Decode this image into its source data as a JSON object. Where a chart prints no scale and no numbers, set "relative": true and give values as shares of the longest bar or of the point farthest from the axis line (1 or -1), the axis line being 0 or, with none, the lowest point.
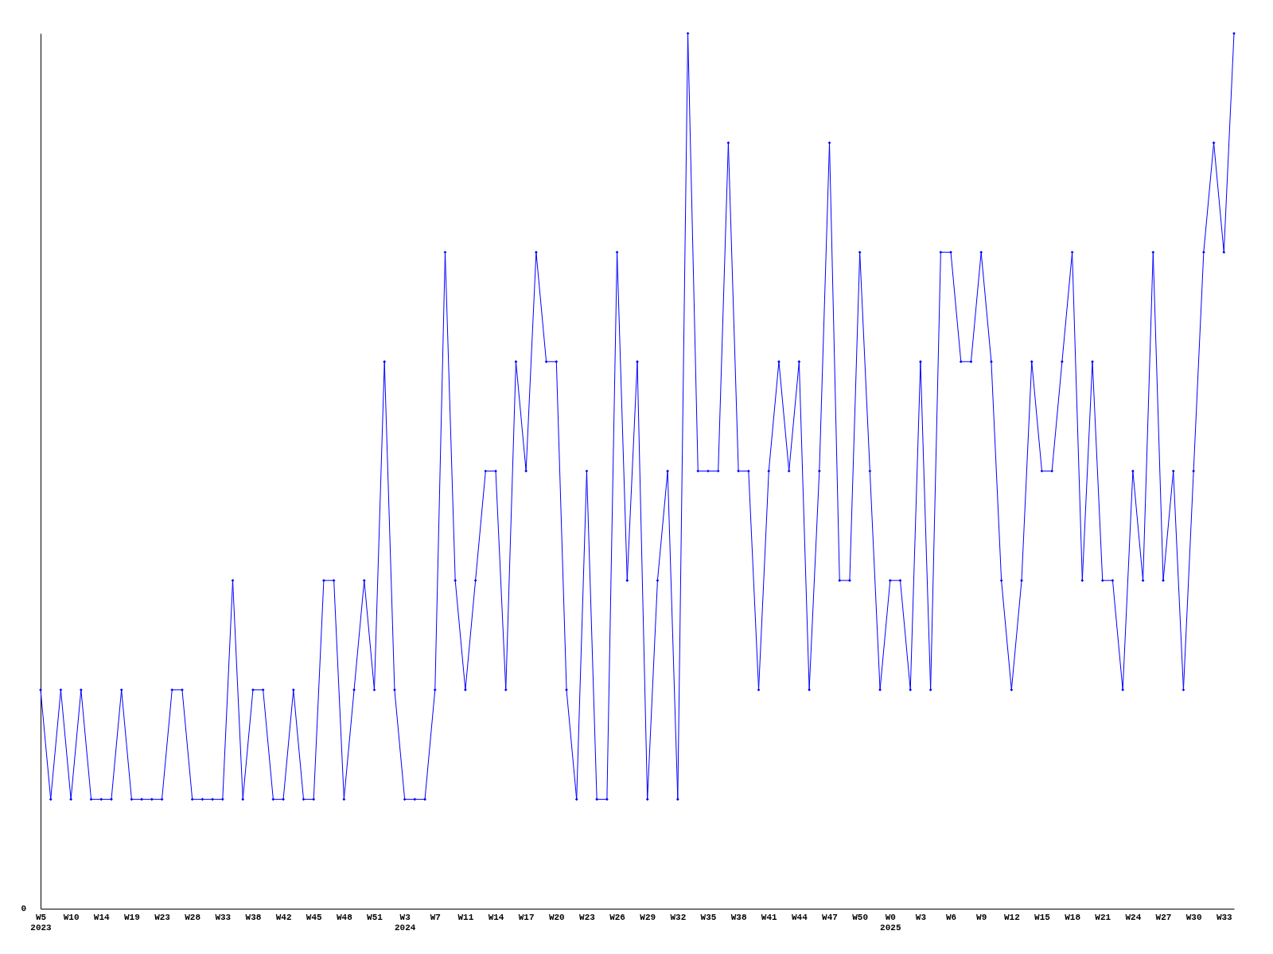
{
  "chart_data": {
    "type": "line",
    "relative": true,
    "color": "#0000ff",
    "marker": "diamond",
    "line_style": "solid",
    "grid": false,
    "annotations": [
      "0"
    ],
    "categories": [
      "W5 2023",
      null,
      null,
      "W10",
      null,
      null,
      "W14",
      null,
      null,
      "W19",
      null,
      null,
      "W23",
      null,
      null,
      "W28",
      null,
      null,
      "W33",
      null,
      null,
      "W38",
      null,
      null,
      "W42",
      null,
      null,
      "W45",
      null,
      null,
      "W48",
      null,
      null,
      "W51",
      null,
      null,
      "W3 2024",
      null,
      null,
      "W7",
      null,
      null,
      "W11",
      null,
      null,
      "W14",
      null,
      null,
      "W17",
      null,
      null,
      "W20",
      null,
      null,
      "W23",
      null,
      null,
      "W26",
      null,
      null,
      "W29",
      null,
      null,
      "W32",
      null,
      null,
      "W35",
      null,
      null,
      "W38",
      null,
      null,
      "W41",
      null,
      null,
      "W44",
      null,
      null,
      "W47",
      null,
      null,
      "W50",
      null,
      null,
      "W0 2025",
      null,
      null,
      "W3",
      null,
      null,
      "W6",
      null,
      null,
      "W9",
      null,
      null,
      "W12",
      null,
      null,
      "W15",
      null,
      null,
      "W18",
      null,
      null,
      "W21",
      null,
      null,
      "W24",
      null,
      null,
      "W27",
      null,
      null,
      "W30",
      null,
      null,
      "W33",
      null
    ],
    "values": [
      0.25,
      0.125,
      0.25,
      0.125,
      0.25,
      0.125,
      0.125,
      0.125,
      0.25,
      0.125,
      0.125,
      0.125,
      0.125,
      0.25,
      0.25,
      0.125,
      0.125,
      0.125,
      0.125,
      0.375,
      0.125,
      0.25,
      0.25,
      0.125,
      0.125,
      0.25,
      0.125,
      0.125,
      0.375,
      0.375,
      0.125,
      0.25,
      0.375,
      0.25,
      0.625,
      0.25,
      0.125,
      0.125,
      0.125,
      0.25,
      0.75,
      0.375,
      0.25,
      0.375,
      0.5,
      0.5,
      0.25,
      0.625,
      0.5,
      0.75,
      0.625,
      0.625,
      0.25,
      0.125,
      0.5,
      0.125,
      0.125,
      0.75,
      0.375,
      0.625,
      0.125,
      0.375,
      0.5,
      0.125,
      1,
      0.5,
      0.5,
      0.5,
      0.875,
      0.5,
      0.5,
      0.25,
      0.5,
      0.625,
      0.5,
      0.625,
      0.25,
      0.5,
      0.875,
      0.375,
      0.375,
      0.75,
      0.5,
      0.25,
      0.375,
      0.375,
      0.25,
      0.625,
      0.25,
      0.75,
      0.75,
      0.625,
      0.625,
      0.75,
      0.625,
      0.375,
      0.25,
      0.375,
      0.625,
      0.5,
      0.5,
      0.625,
      0.75,
      0.375,
      0.625,
      0.375,
      0.375,
      0.25,
      0.5,
      0.375,
      0.75,
      0.375,
      0.5,
      0.25,
      0.5,
      0.75,
      0.875,
      0.75,
      1
    ]
  }
}
